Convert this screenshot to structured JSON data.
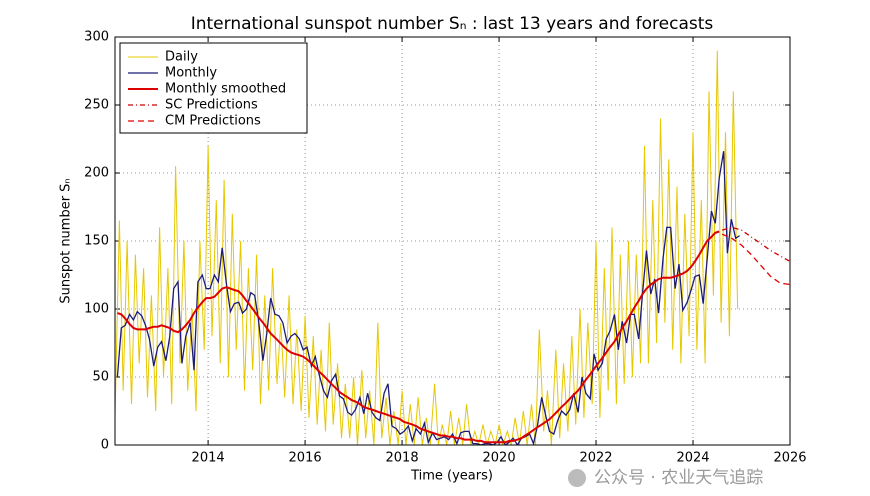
{
  "chart_data": {
    "type": "line",
    "title": "International sunspot number Sₙ : last 13 years and forecasts",
    "xlabel": "Time (years)",
    "ylabel": "Sunspot number Sₙ",
    "watermark": "公众号 · 农业天气追踪",
    "xlim": [
      2012.08,
      2026
    ],
    "ylim": [
      0,
      300
    ],
    "xticks": [
      2014,
      2016,
      2018,
      2020,
      2022,
      2024,
      2026
    ],
    "yticks": [
      0,
      50,
      100,
      150,
      200,
      250,
      300
    ],
    "grid": true,
    "legend": "upper left",
    "x": [
      2012.13,
      2012.21,
      2012.29,
      2012.38,
      2012.46,
      2012.54,
      2012.63,
      2012.71,
      2012.79,
      2012.88,
      2012.96,
      2013.04,
      2013.13,
      2013.21,
      2013.29,
      2013.38,
      2013.46,
      2013.54,
      2013.63,
      2013.71,
      2013.79,
      2013.88,
      2013.96,
      2014.04,
      2014.13,
      2014.21,
      2014.29,
      2014.38,
      2014.46,
      2014.54,
      2014.63,
      2014.71,
      2014.79,
      2014.88,
      2014.96,
      2015.04,
      2015.13,
      2015.21,
      2015.29,
      2015.38,
      2015.46,
      2015.54,
      2015.63,
      2015.71,
      2015.79,
      2015.88,
      2015.96,
      2016.04,
      2016.13,
      2016.21,
      2016.29,
      2016.38,
      2016.46,
      2016.54,
      2016.63,
      2016.71,
      2016.79,
      2016.88,
      2016.96,
      2017.04,
      2017.13,
      2017.21,
      2017.29,
      2017.38,
      2017.46,
      2017.54,
      2017.63,
      2017.71,
      2017.79,
      2017.88,
      2017.96,
      2018.04,
      2018.13,
      2018.21,
      2018.29,
      2018.38,
      2018.46,
      2018.54,
      2018.63,
      2018.71,
      2018.79,
      2018.88,
      2018.96,
      2019.04,
      2019.13,
      2019.21,
      2019.29,
      2019.38,
      2019.46,
      2019.54,
      2019.63,
      2019.71,
      2019.79,
      2019.88,
      2019.96,
      2020.04,
      2020.13,
      2020.21,
      2020.29,
      2020.38,
      2020.46,
      2020.54,
      2020.63,
      2020.71,
      2020.79,
      2020.88,
      2020.96,
      2021.04,
      2021.13,
      2021.21,
      2021.29,
      2021.38,
      2021.46,
      2021.54,
      2021.63,
      2021.71,
      2021.79,
      2021.88,
      2021.96,
      2022.04,
      2022.13,
      2022.21,
      2022.29,
      2022.38,
      2022.46,
      2022.54,
      2022.63,
      2022.71,
      2022.79,
      2022.88,
      2022.96,
      2023.04,
      2023.13,
      2023.21,
      2023.29,
      2023.38,
      2023.46,
      2023.54,
      2023.63,
      2023.71,
      2023.79,
      2023.88,
      2023.96,
      2024.04,
      2024.13,
      2024.21,
      2024.29,
      2024.38,
      2024.46,
      2024.54,
      2024.63,
      2024.71,
      2024.79,
      2024.88,
      2024.96
    ],
    "series": [
      {
        "name": "Daily",
        "color": "#e6c800",
        "linestyle": "solid",
        "x": [
          2012.08,
          2012.17,
          2012.25,
          2012.33,
          2012.42,
          2012.5,
          2012.58,
          2012.67,
          2012.75,
          2012.83,
          2012.92,
          2013,
          2013.08,
          2013.17,
          2013.25,
          2013.33,
          2013.42,
          2013.5,
          2013.58,
          2013.67,
          2013.75,
          2013.83,
          2013.92,
          2014,
          2014.08,
          2014.17,
          2014.25,
          2014.33,
          2014.42,
          2014.5,
          2014.58,
          2014.67,
          2014.75,
          2014.83,
          2014.92,
          2015,
          2015.08,
          2015.17,
          2015.25,
          2015.33,
          2015.42,
          2015.5,
          2015.58,
          2015.67,
          2015.75,
          2015.83,
          2015.92,
          2016,
          2016.08,
          2016.17,
          2016.25,
          2016.33,
          2016.42,
          2016.5,
          2016.58,
          2016.67,
          2016.75,
          2016.83,
          2016.92,
          2017,
          2017.08,
          2017.17,
          2017.25,
          2017.33,
          2017.42,
          2017.5,
          2017.58,
          2017.67,
          2017.75,
          2017.83,
          2017.92,
          2018,
          2018.08,
          2018.17,
          2018.25,
          2018.33,
          2018.42,
          2018.5,
          2018.58,
          2018.67,
          2018.75,
          2018.83,
          2018.92,
          2019,
          2019.08,
          2019.17,
          2019.25,
          2019.33,
          2019.42,
          2019.5,
          2019.58,
          2019.67,
          2019.75,
          2019.83,
          2019.92,
          2020,
          2020.08,
          2020.17,
          2020.25,
          2020.33,
          2020.42,
          2020.5,
          2020.58,
          2020.67,
          2020.75,
          2020.83,
          2020.92,
          2021,
          2021.08,
          2021.17,
          2021.25,
          2021.33,
          2021.42,
          2021.5,
          2021.58,
          2021.67,
          2021.75,
          2021.83,
          2021.92,
          2022,
          2022.08,
          2022.17,
          2022.25,
          2022.33,
          2022.42,
          2022.5,
          2022.58,
          2022.67,
          2022.75,
          2022.83,
          2022.92,
          2023,
          2023.08,
          2023.17,
          2023.25,
          2023.33,
          2023.42,
          2023.5,
          2023.58,
          2023.67,
          2023.75,
          2023.83,
          2023.92,
          2024,
          2024.08,
          2024.17,
          2024.25,
          2024.33,
          2024.42,
          2024.5,
          2024.58,
          2024.67,
          2024.75,
          2024.83,
          2024.92
        ],
        "values": [
          20,
          165,
          40,
          150,
          30,
          140,
          60,
          130,
          35,
          110,
          25,
          160,
          50,
          130,
          30,
          205,
          60,
          150,
          40,
          100,
          25,
          150,
          70,
          220,
          80,
          180,
          60,
          195,
          50,
          170,
          70,
          150,
          40,
          130,
          55,
          140,
          30,
          110,
          40,
          130,
          45,
          90,
          35,
          110,
          30,
          85,
          25,
          95,
          20,
          80,
          15,
          70,
          10,
          90,
          15,
          60,
          5,
          45,
          5,
          50,
          0,
          55,
          5,
          40,
          0,
          90,
          5,
          35,
          0,
          25,
          0,
          40,
          0,
          30,
          0,
          35,
          0,
          20,
          0,
          45,
          0,
          15,
          0,
          25,
          0,
          20,
          0,
          30,
          0,
          10,
          0,
          15,
          0,
          10,
          0,
          15,
          0,
          10,
          0,
          20,
          0,
          25,
          0,
          30,
          0,
          85,
          10,
          40,
          0,
          70,
          5,
          60,
          10,
          80,
          15,
          100,
          20,
          90,
          30,
          150,
          20,
          130,
          40,
          160,
          30,
          140,
          45,
          150,
          50,
          140,
          60,
          220,
          60,
          180,
          75,
          240,
          90,
          210,
          70,
          190,
          60,
          170,
          80,
          230,
          70,
          180,
          60,
          260,
          110,
          290,
          90,
          230,
          80,
          260,
          100
        ]
      },
      {
        "name": "Monthly",
        "color": "#1c1c78",
        "linestyle": "solid",
        "values": [
          50,
          86,
          88,
          96,
          92,
          98,
          95,
          88,
          78,
          58,
          72,
          76,
          62,
          80,
          115,
          120,
          60,
          80,
          90,
          55,
          120,
          125,
          115,
          115,
          125,
          120,
          145,
          118,
          98,
          104,
          105,
          97,
          100,
          112,
          110,
          92,
          62,
          82,
          108,
          96,
          95,
          90,
          75,
          80,
          82,
          78,
          70,
          72,
          58,
          65,
          52,
          40,
          35,
          47,
          52,
          36,
          34,
          24,
          22,
          26,
          35,
          23,
          38,
          24,
          20,
          18,
          38,
          45,
          14,
          12,
          8,
          10,
          14,
          3,
          12,
          8,
          16,
          2,
          9,
          4,
          5,
          6,
          4,
          8,
          1,
          9,
          10,
          10,
          1,
          1,
          0,
          1,
          1,
          0,
          2,
          6,
          0,
          2,
          5,
          0,
          5,
          6,
          8,
          1,
          14,
          35,
          22,
          10,
          8,
          18,
          25,
          22,
          26,
          38,
          24,
          50,
          38,
          34,
          67,
          55,
          60,
          78,
          84,
          96,
          70,
          91,
          75,
          96,
          96,
          78,
          112,
          143,
          111,
          122,
          97,
          137,
          160,
          160,
          115,
          133,
          99,
          105,
          114,
          124,
          125,
          104,
          136,
          172,
          163,
          196,
          216,
          141,
          166,
          152,
          154
        ]
      },
      {
        "name": "Monthly smoothed",
        "color": "#dd0000",
        "linestyle": "solid",
        "values": [
          97,
          96,
          93,
          89,
          86,
          85,
          85,
          85,
          86,
          87,
          87,
          88,
          87,
          86,
          84,
          83,
          85,
          88,
          92,
          97,
          101,
          105,
          108,
          108,
          109,
          112,
          115,
          116,
          115,
          114,
          113,
          110,
          106,
          102,
          98,
          94,
          90,
          86,
          82,
          79,
          76,
          73,
          70,
          68,
          67,
          66,
          65,
          63,
          60,
          57,
          54,
          51,
          48,
          45,
          42,
          39,
          37,
          35,
          33,
          32,
          30,
          28,
          27,
          26,
          25,
          24,
          23,
          22,
          21,
          20,
          19,
          17,
          16,
          15,
          14,
          12,
          11,
          10,
          9,
          8,
          7,
          7,
          6,
          6,
          5,
          5,
          4,
          4,
          4,
          3,
          3,
          2,
          2,
          2,
          2,
          2,
          2,
          3,
          3,
          4,
          5,
          7,
          9,
          11,
          13,
          15,
          17,
          19,
          22,
          25,
          28,
          31,
          34,
          37,
          40,
          44,
          48,
          52,
          56,
          60,
          64,
          68,
          72,
          76,
          81,
          86,
          91,
          96,
          101,
          106,
          111,
          115,
          118,
          120,
          122,
          123,
          123,
          123,
          124,
          125,
          126,
          128,
          131,
          135,
          140,
          145,
          150,
          153,
          156,
          157,
          null,
          null,
          null,
          null,
          null
        ]
      },
      {
        "name": "SC Predictions",
        "color": "#cc0000",
        "linestyle": "dashdot",
        "x": [
          2024.6,
          2024.8,
          2025,
          2025.2,
          2025.4,
          2025.6,
          2025.8,
          2026
        ],
        "values": [
          158,
          160,
          158,
          153,
          148,
          143,
          139,
          135
        ]
      },
      {
        "name": "CM Predictions",
        "color": "#dd0000",
        "linestyle": "dashed",
        "x": [
          2024.6,
          2024.8,
          2025,
          2025.2,
          2025.4,
          2025.6,
          2025.8,
          2026
        ],
        "values": [
          155,
          152,
          147,
          140,
          132,
          124,
          119,
          118
        ]
      }
    ]
  }
}
